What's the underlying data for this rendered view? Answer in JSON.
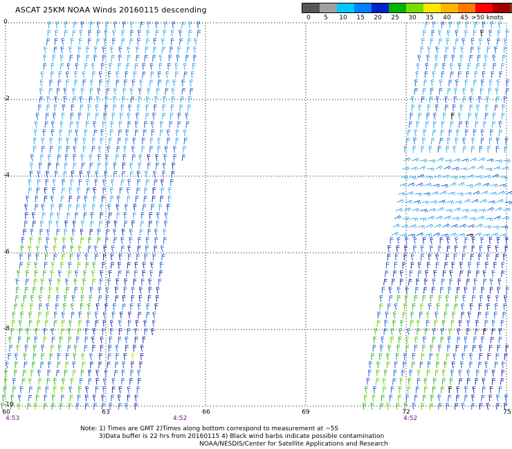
{
  "title": "ASCAT 25KM NOAA Winds 20160115 descending",
  "colorbar": {
    "colors": [
      "#555555",
      "#a0a0a0",
      "#00c8ff",
      "#0080ff",
      "#0020c8",
      "#00b400",
      "#78dc00",
      "#ffe600",
      "#ffb400",
      "#ff7800",
      "#ff0000",
      "#a00000",
      "#7a4010",
      "#ff64ff",
      "#b400ff",
      "#5a00a0"
    ],
    "labels": [
      "0",
      "5",
      "10",
      "15",
      "20",
      "25",
      "30",
      "35",
      "40",
      "45",
      ">50 knots"
    ]
  },
  "map": {
    "lat_labels": [
      "0",
      "-2",
      "-4",
      "-6",
      "-8",
      "-10"
    ],
    "lon_labels": [
      "60",
      "63",
      "66",
      "69",
      "72",
      "75"
    ],
    "time_labels": [
      "4:53",
      "4:52",
      "4:52"
    ],
    "swath_colors": {
      "light": "#33aaee",
      "mid": "#2266dd",
      "dark": "#1f2fb8",
      "green": "#2bb82b",
      "lime": "#66cc00",
      "yellow": "#e8e000",
      "contam": "#000000"
    }
  },
  "notes": {
    "line1": "Note: 1) Times are GMT 2)Times along bottom correspond to measurement at ~5S",
    "line2": "3)Data buffer is 22 hrs from 20160115 4) Black wind barbs indicate possible contamination",
    "line3": "NOAA/NESDIS/Center for Satellite Applications and Research"
  }
}
